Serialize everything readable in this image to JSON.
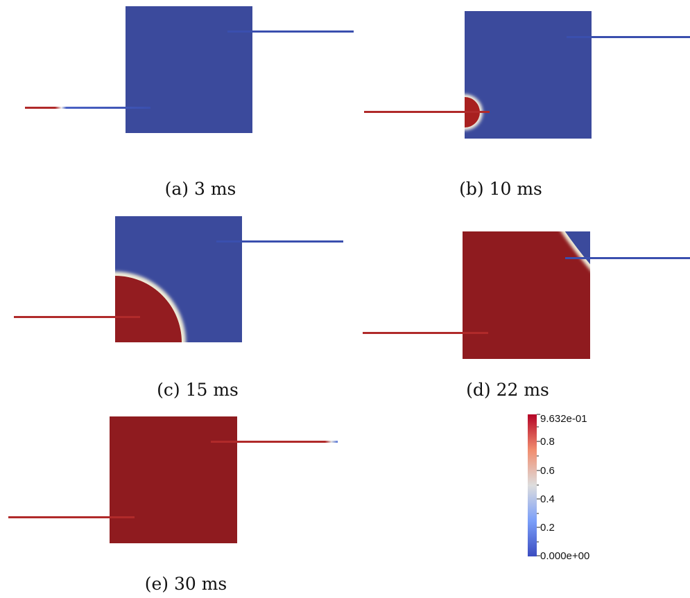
{
  "colors": {
    "low": "#3b4a9c",
    "high": "#8f1b1f",
    "mid": "#dddddd"
  },
  "panels": [
    {
      "caption": "(a) 3 ms"
    },
    {
      "caption": "(b) 10 ms"
    },
    {
      "caption": "(c) 15 ms"
    },
    {
      "caption": "(d) 22 ms"
    },
    {
      "caption": "(e) 30 ms"
    }
  ],
  "colorbar": {
    "max_label": "9.632e-01",
    "min_label": "0.000e+00",
    "tick_labels": [
      "0.8",
      "0.6",
      "0.4",
      "0.2"
    ]
  }
}
